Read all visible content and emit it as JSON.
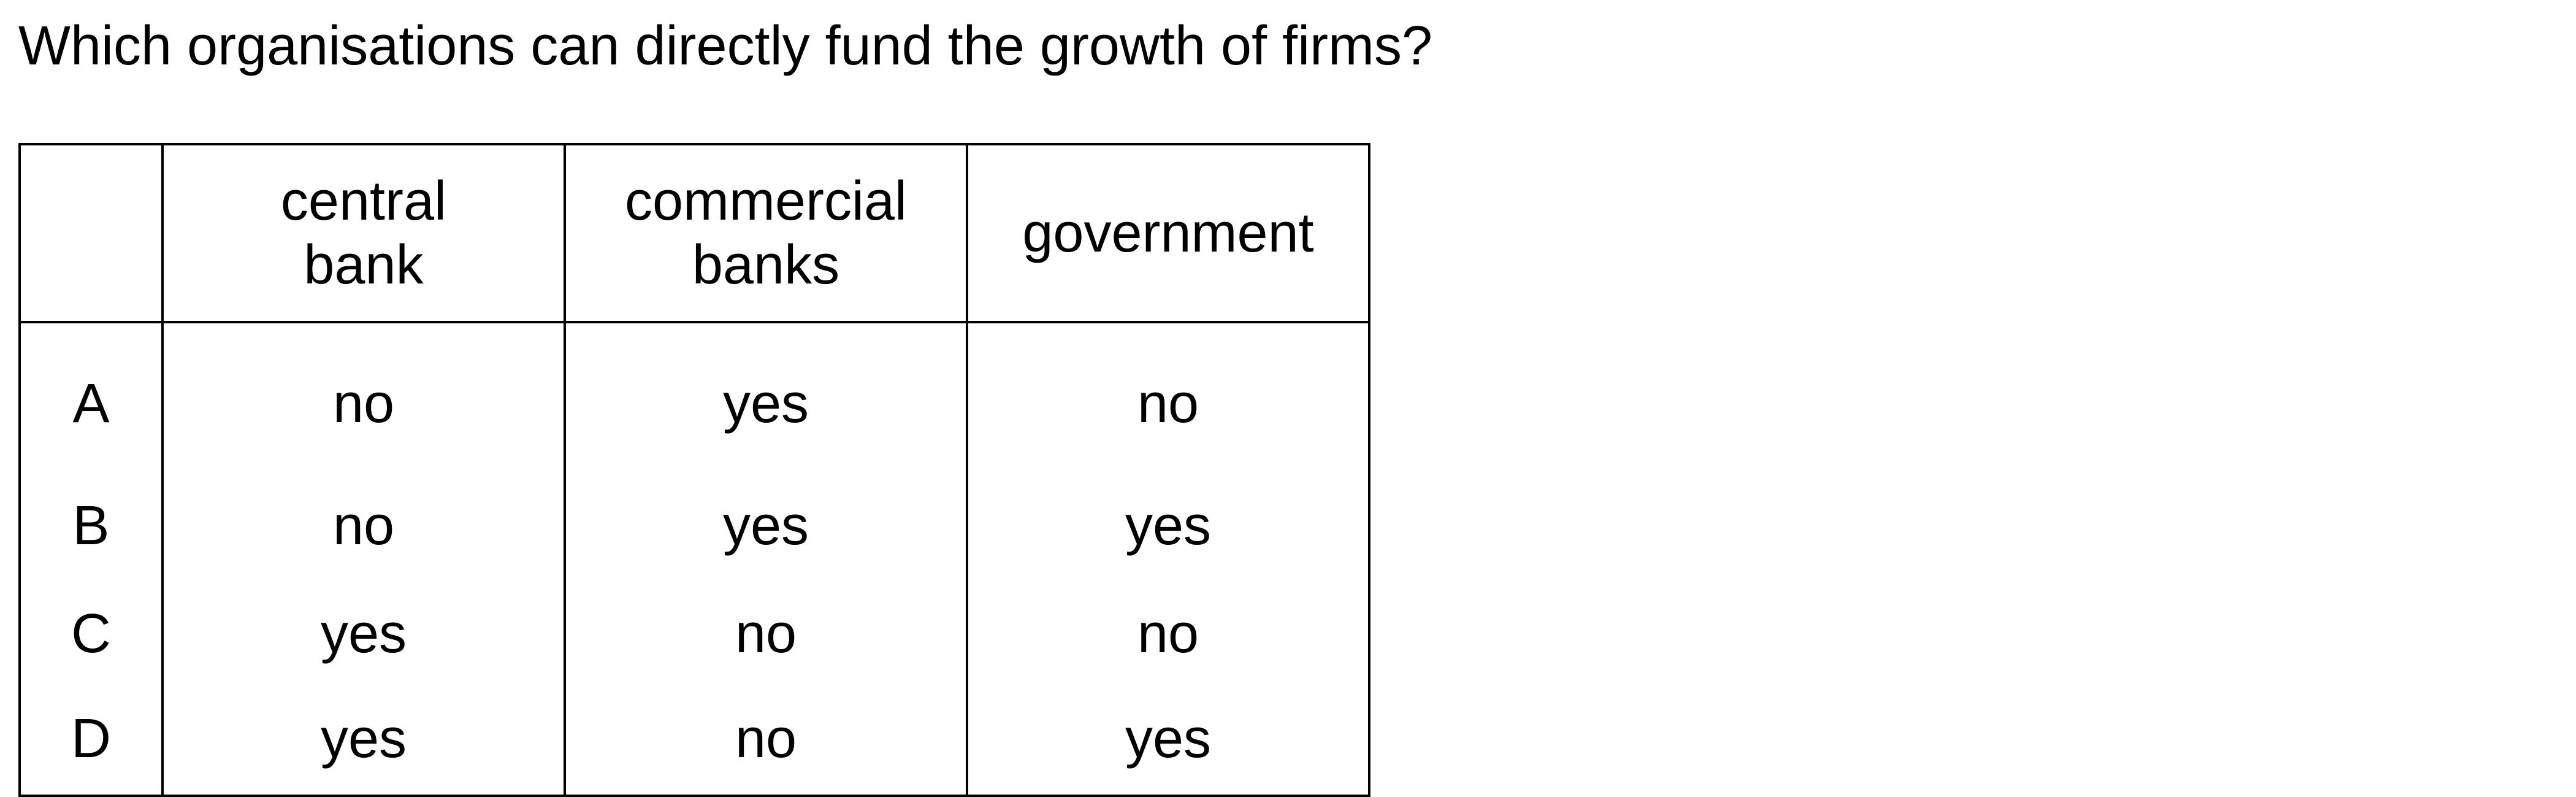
{
  "question": "Which organisations can directly fund the growth of firms?",
  "table": {
    "headers": [
      {
        "line1": "central",
        "line2": "bank"
      },
      {
        "line1": "commercial",
        "line2": "banks"
      },
      {
        "line1": "government",
        "line2": ""
      }
    ],
    "rows": [
      {
        "key": "A",
        "cells": [
          "no",
          "yes",
          "no"
        ]
      },
      {
        "key": "B",
        "cells": [
          "no",
          "yes",
          "yes"
        ]
      },
      {
        "key": "C",
        "cells": [
          "yes",
          "no",
          "no"
        ]
      },
      {
        "key": "D",
        "cells": [
          "yes",
          "no",
          "yes"
        ]
      }
    ]
  }
}
